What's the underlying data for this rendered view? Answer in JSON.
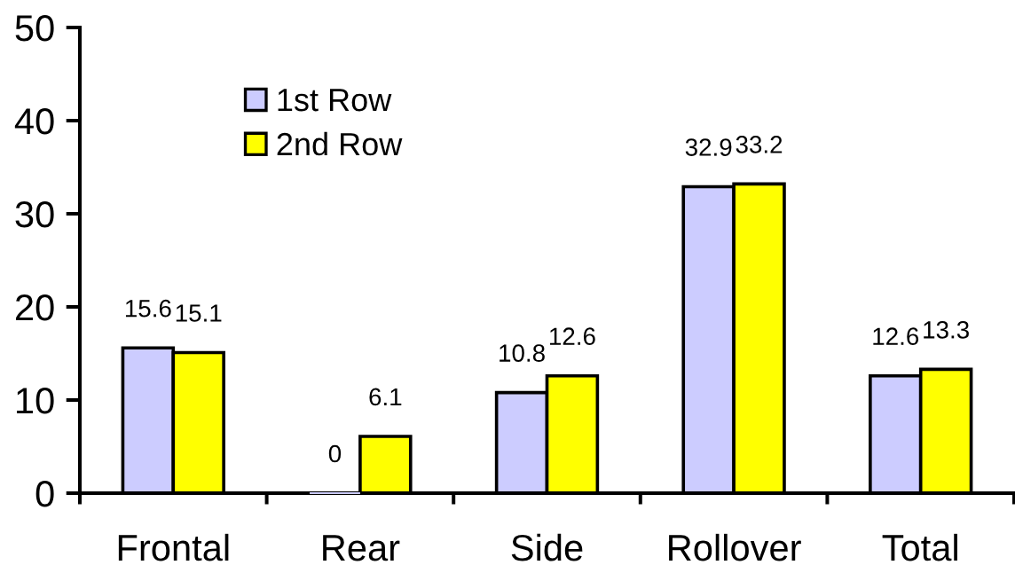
{
  "chart_data": {
    "type": "bar",
    "categories": [
      "Frontal",
      "Rear",
      "Side",
      "Rollover",
      "Total"
    ],
    "series": [
      {
        "name": "1st Row",
        "color": "#ccccff",
        "values": [
          15.6,
          0,
          10.8,
          32.9,
          12.6
        ]
      },
      {
        "name": "2nd Row",
        "color": "#ffff00",
        "values": [
          15.1,
          6.1,
          12.6,
          33.2,
          13.3
        ]
      }
    ],
    "ylim": [
      0,
      50
    ],
    "yticks": [
      0,
      10,
      20,
      30,
      40,
      50
    ],
    "data_labels": true,
    "legend": "top left"
  }
}
